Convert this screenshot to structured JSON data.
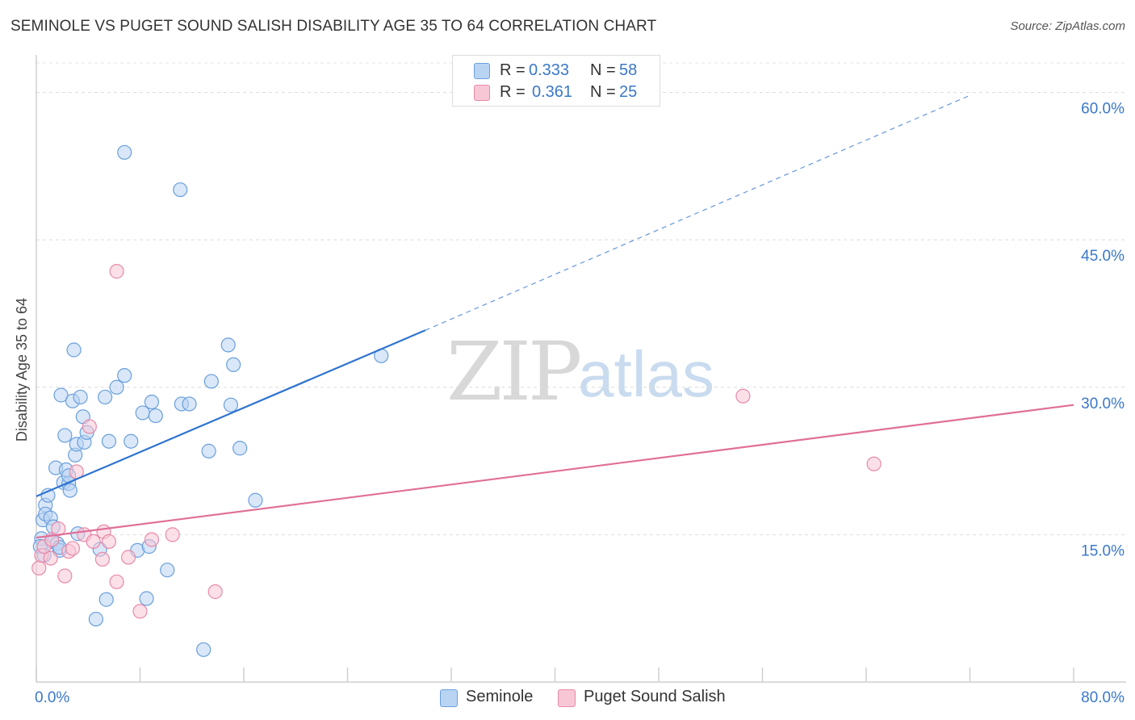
{
  "title": "SEMINOLE VS PUGET SOUND SALISH DISABILITY AGE 35 TO 64 CORRELATION CHART",
  "source": "Source: ZipAtlas.com",
  "watermark": {
    "zip": "ZIP",
    "atlas": "atlas"
  },
  "legend": {
    "r_label": "R =",
    "n_label": "N =",
    "series": [
      {
        "name": "Seminole",
        "r": "0.333",
        "n": "58",
        "fill": "#b9d4f3",
        "stroke": "#6a9fdc"
      },
      {
        "name": "Puget Sound Salish",
        "r": "0.361",
        "n": "25",
        "fill": "#f8c7d6",
        "stroke": "#e88aa9"
      }
    ]
  },
  "chart_data": {
    "type": "scatter",
    "title": "SEMINOLE VS PUGET SOUND SALISH DISABILITY AGE 35 TO 64 CORRELATION CHART",
    "xlabel": "",
    "ylabel": "Disability Age 35 to 64",
    "xlim": [
      0,
      80
    ],
    "ylim": [
      0,
      63
    ],
    "x_tick_labels": [
      "0.0%",
      "80.0%"
    ],
    "y_ticks": [
      15,
      30,
      45,
      60
    ],
    "y_tick_labels": [
      "15.0%",
      "30.0%",
      "45.0%",
      "60.0%"
    ],
    "grid": true,
    "colors": {
      "seminole": "#2f74d0",
      "puget": "#e06f98",
      "tick_text": "#3a78c9"
    },
    "series": [
      {
        "name": "Seminole",
        "color": "#6a9fdc",
        "points": [
          [
            0.4,
            14.6
          ],
          [
            0.5,
            16.5
          ],
          [
            0.7,
            18.0
          ],
          [
            0.7,
            17.1
          ],
          [
            0.9,
            19.0
          ],
          [
            1.1,
            16.7
          ],
          [
            1.2,
            14.3
          ],
          [
            1.3,
            15.8
          ],
          [
            1.5,
            21.8
          ],
          [
            1.6,
            14.1
          ],
          [
            1.8,
            13.4
          ],
          [
            1.8,
            13.7
          ],
          [
            1.9,
            29.2
          ],
          [
            2.1,
            20.3
          ],
          [
            2.2,
            25.1
          ],
          [
            2.3,
            21.6
          ],
          [
            2.5,
            20.2
          ],
          [
            2.5,
            21.0
          ],
          [
            2.6,
            19.5
          ],
          [
            2.8,
            28.6
          ],
          [
            2.9,
            33.8
          ],
          [
            3.0,
            23.1
          ],
          [
            3.1,
            24.2
          ],
          [
            3.2,
            15.1
          ],
          [
            3.4,
            29.0
          ],
          [
            3.6,
            27.0
          ],
          [
            3.7,
            24.4
          ],
          [
            3.9,
            25.4
          ],
          [
            4.6,
            6.4
          ],
          [
            4.9,
            13.5
          ],
          [
            5.3,
            29.0
          ],
          [
            5.4,
            8.4
          ],
          [
            5.6,
            24.5
          ],
          [
            6.2,
            30.0
          ],
          [
            6.8,
            31.2
          ],
          [
            6.8,
            53.9
          ],
          [
            7.3,
            24.5
          ],
          [
            7.8,
            13.4
          ],
          [
            8.2,
            27.4
          ],
          [
            8.5,
            8.5
          ],
          [
            8.7,
            13.8
          ],
          [
            8.9,
            28.5
          ],
          [
            9.2,
            27.1
          ],
          [
            10.1,
            11.4
          ],
          [
            11.1,
            50.1
          ],
          [
            11.2,
            28.3
          ],
          [
            11.8,
            28.3
          ],
          [
            12.9,
            3.3
          ],
          [
            13.3,
            23.5
          ],
          [
            13.5,
            30.6
          ],
          [
            14.8,
            34.3
          ],
          [
            15.0,
            28.2
          ],
          [
            15.2,
            32.3
          ],
          [
            15.7,
            23.8
          ],
          [
            16.9,
            18.5
          ],
          [
            26.6,
            33.2
          ],
          [
            0.3,
            13.8
          ],
          [
            0.6,
            12.9
          ]
        ],
        "trend": {
          "x": [
            0,
            30
          ],
          "y": [
            18.9,
            35.8
          ],
          "extended_to": [
            72,
            59.7
          ]
        }
      },
      {
        "name": "Puget Sound Salish",
        "color": "#e88aa9",
        "points": [
          [
            0.2,
            11.6
          ],
          [
            0.4,
            12.9
          ],
          [
            0.6,
            13.8
          ],
          [
            1.1,
            12.6
          ],
          [
            1.2,
            14.5
          ],
          [
            1.7,
            15.6
          ],
          [
            2.2,
            10.8
          ],
          [
            2.5,
            13.3
          ],
          [
            2.8,
            13.6
          ],
          [
            3.1,
            21.4
          ],
          [
            3.7,
            15.0
          ],
          [
            4.1,
            26.0
          ],
          [
            4.4,
            14.3
          ],
          [
            5.1,
            12.5
          ],
          [
            5.2,
            15.3
          ],
          [
            5.6,
            14.3
          ],
          [
            6.2,
            10.2
          ],
          [
            6.2,
            41.8
          ],
          [
            7.1,
            12.7
          ],
          [
            8.0,
            7.2
          ],
          [
            8.9,
            14.5
          ],
          [
            10.5,
            15.0
          ],
          [
            13.8,
            9.2
          ],
          [
            54.5,
            29.1
          ],
          [
            64.6,
            22.2
          ]
        ],
        "trend": {
          "x": [
            0,
            80
          ],
          "y": [
            14.7,
            28.2
          ]
        }
      }
    ]
  }
}
